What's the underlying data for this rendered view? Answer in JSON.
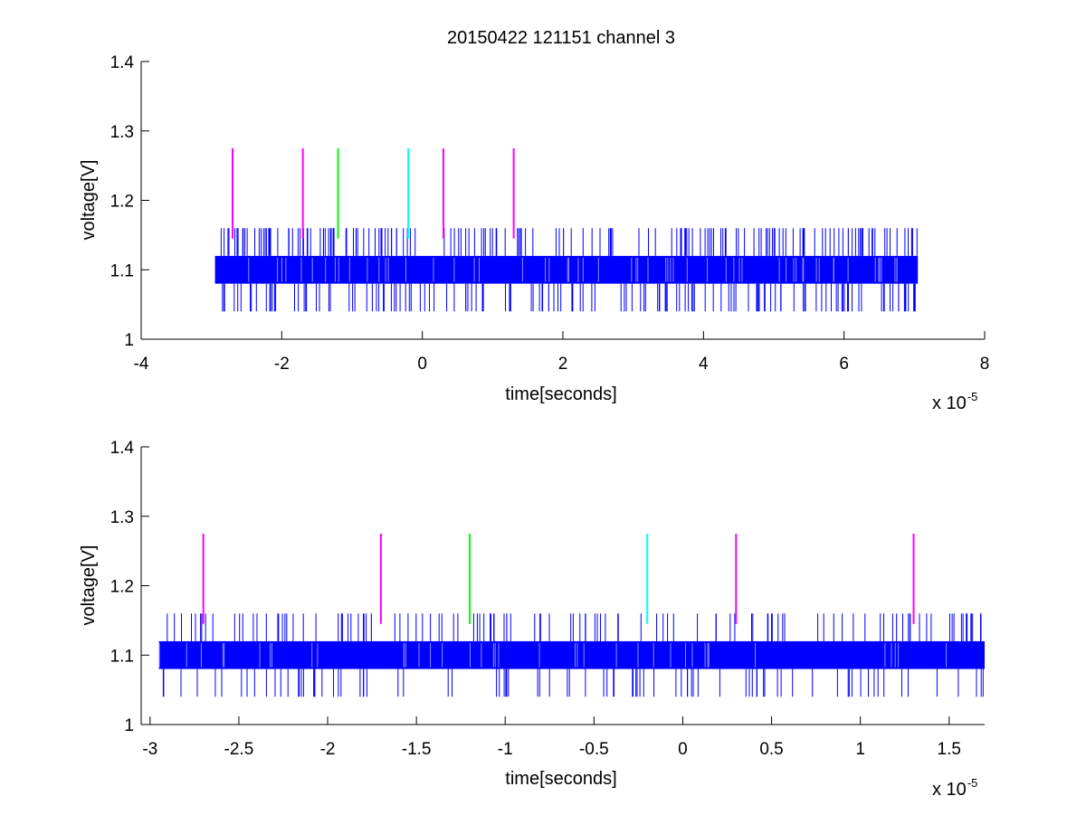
{
  "figure": {
    "title": "20150422 121151 channel 3",
    "trace_color": "#0000ff",
    "background": "#ffffff"
  },
  "chart_data": [
    {
      "type": "line",
      "title": "20150422 121151 channel 3",
      "xlabel": "time[seconds]",
      "ylabel": "voltage[V]",
      "x_multiplier_label": "x 10",
      "x_multiplier_exp": "-5",
      "x_scale": 1e-05,
      "xlim": [
        -4,
        8
      ],
      "ylim": [
        1,
        1.4
      ],
      "xticks": [
        -4,
        -2,
        0,
        2,
        4,
        6,
        8
      ],
      "xtick_labels": [
        "-4",
        "-2",
        "0",
        "2",
        "4",
        "6",
        "8"
      ],
      "yticks": [
        1,
        1.1,
        1.2,
        1.3,
        1.4
      ],
      "ytick_labels": [
        "1",
        "1.1",
        "1.2",
        "1.3",
        "1.4"
      ],
      "grid": false,
      "series": [
        {
          "kind": "noise-band",
          "color": "#0000ff",
          "x_range": [
            -2.95,
            7.05
          ],
          "levels": [
            1.04,
            1.08,
            1.12,
            1.16
          ],
          "band": [
            1.08,
            1.12
          ],
          "outer_levels": [
            1.04,
            1.16
          ],
          "up_spike_count": 180,
          "down_spike_count": 150
        }
      ],
      "markers": [
        {
          "x": -2.7,
          "color": "#ff00ff",
          "y_range": [
            1.145,
            1.275
          ]
        },
        {
          "x": -1.7,
          "color": "#ff00ff",
          "y_range": [
            1.145,
            1.275
          ]
        },
        {
          "x": -1.2,
          "color": "#00ff00",
          "y_range": [
            1.145,
            1.275
          ]
        },
        {
          "x": -0.2,
          "color": "#00ffff",
          "y_range": [
            1.145,
            1.275
          ]
        },
        {
          "x": 0.3,
          "color": "#ff00ff",
          "y_range": [
            1.145,
            1.275
          ]
        },
        {
          "x": 1.3,
          "color": "#ff00ff",
          "y_range": [
            1.145,
            1.275
          ]
        }
      ]
    },
    {
      "type": "line",
      "title": "",
      "xlabel": "time[seconds]",
      "ylabel": "voltage[V]",
      "x_multiplier_label": "x 10",
      "x_multiplier_exp": "-5",
      "x_scale": 1e-05,
      "xlim": [
        -3.05,
        1.7
      ],
      "ylim": [
        1,
        1.4
      ],
      "xticks": [
        -3,
        -2.5,
        -2,
        -1.5,
        -1,
        -0.5,
        0,
        0.5,
        1,
        1.5
      ],
      "xtick_labels": [
        "-3",
        "-2.5",
        "-2",
        "-1.5",
        "-1",
        "-0.5",
        "0",
        "0.5",
        "1",
        "1.5"
      ],
      "yticks": [
        1,
        1.1,
        1.2,
        1.3,
        1.4
      ],
      "ytick_labels": [
        "1",
        "1.1",
        "1.2",
        "1.3",
        "1.4"
      ],
      "grid": false,
      "series": [
        {
          "kind": "noise-band",
          "color": "#0000ff",
          "x_range": [
            -2.95,
            1.7
          ],
          "levels": [
            1.04,
            1.08,
            1.12,
            1.16
          ],
          "band": [
            1.08,
            1.12
          ],
          "outer_levels": [
            1.04,
            1.16
          ],
          "up_spike_count": 120,
          "down_spike_count": 90
        }
      ],
      "markers": [
        {
          "x": -2.7,
          "color": "#ff00ff",
          "y_range": [
            1.145,
            1.275
          ]
        },
        {
          "x": -1.7,
          "color": "#ff00ff",
          "y_range": [
            1.145,
            1.275
          ]
        },
        {
          "x": -1.2,
          "color": "#00ff00",
          "y_range": [
            1.145,
            1.275
          ]
        },
        {
          "x": -0.2,
          "color": "#00ffff",
          "y_range": [
            1.145,
            1.275
          ]
        },
        {
          "x": 0.3,
          "color": "#ff00ff",
          "y_range": [
            1.145,
            1.275
          ]
        },
        {
          "x": 1.3,
          "color": "#ff00ff",
          "y_range": [
            1.145,
            1.275
          ]
        }
      ]
    }
  ]
}
